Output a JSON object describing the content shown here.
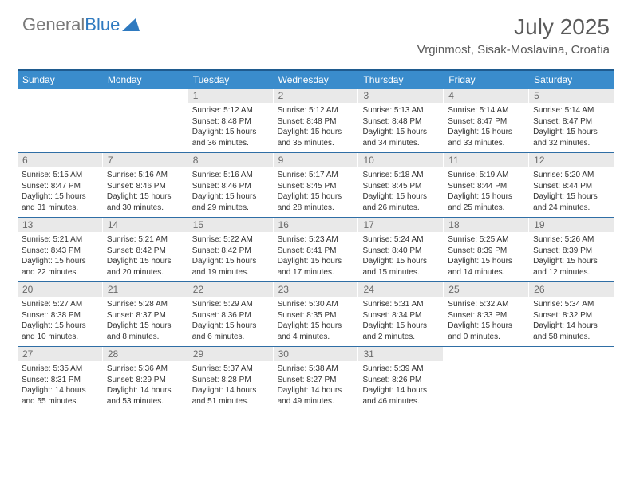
{
  "logo": {
    "word1": "General",
    "word2": "Blue"
  },
  "title": "July 2025",
  "location": "Vrginmost, Sisak-Moslavina, Croatia",
  "colors": {
    "header_bg": "#3a8ccc",
    "header_border": "#1f5b8f",
    "daynum_bg": "#e9e9e9",
    "text": "#333333",
    "logo_gray": "#7a7a7a",
    "logo_blue": "#2f7ac0"
  },
  "days_of_week": [
    "Sunday",
    "Monday",
    "Tuesday",
    "Wednesday",
    "Thursday",
    "Friday",
    "Saturday"
  ],
  "weeks": [
    [
      {
        "num": "",
        "lines": []
      },
      {
        "num": "",
        "lines": []
      },
      {
        "num": "1",
        "lines": [
          "Sunrise: 5:12 AM",
          "Sunset: 8:48 PM",
          "Daylight: 15 hours and 36 minutes."
        ]
      },
      {
        "num": "2",
        "lines": [
          "Sunrise: 5:12 AM",
          "Sunset: 8:48 PM",
          "Daylight: 15 hours and 35 minutes."
        ]
      },
      {
        "num": "3",
        "lines": [
          "Sunrise: 5:13 AM",
          "Sunset: 8:48 PM",
          "Daylight: 15 hours and 34 minutes."
        ]
      },
      {
        "num": "4",
        "lines": [
          "Sunrise: 5:14 AM",
          "Sunset: 8:47 PM",
          "Daylight: 15 hours and 33 minutes."
        ]
      },
      {
        "num": "5",
        "lines": [
          "Sunrise: 5:14 AM",
          "Sunset: 8:47 PM",
          "Daylight: 15 hours and 32 minutes."
        ]
      }
    ],
    [
      {
        "num": "6",
        "lines": [
          "Sunrise: 5:15 AM",
          "Sunset: 8:47 PM",
          "Daylight: 15 hours and 31 minutes."
        ]
      },
      {
        "num": "7",
        "lines": [
          "Sunrise: 5:16 AM",
          "Sunset: 8:46 PM",
          "Daylight: 15 hours and 30 minutes."
        ]
      },
      {
        "num": "8",
        "lines": [
          "Sunrise: 5:16 AM",
          "Sunset: 8:46 PM",
          "Daylight: 15 hours and 29 minutes."
        ]
      },
      {
        "num": "9",
        "lines": [
          "Sunrise: 5:17 AM",
          "Sunset: 8:45 PM",
          "Daylight: 15 hours and 28 minutes."
        ]
      },
      {
        "num": "10",
        "lines": [
          "Sunrise: 5:18 AM",
          "Sunset: 8:45 PM",
          "Daylight: 15 hours and 26 minutes."
        ]
      },
      {
        "num": "11",
        "lines": [
          "Sunrise: 5:19 AM",
          "Sunset: 8:44 PM",
          "Daylight: 15 hours and 25 minutes."
        ]
      },
      {
        "num": "12",
        "lines": [
          "Sunrise: 5:20 AM",
          "Sunset: 8:44 PM",
          "Daylight: 15 hours and 24 minutes."
        ]
      }
    ],
    [
      {
        "num": "13",
        "lines": [
          "Sunrise: 5:21 AM",
          "Sunset: 8:43 PM",
          "Daylight: 15 hours and 22 minutes."
        ]
      },
      {
        "num": "14",
        "lines": [
          "Sunrise: 5:21 AM",
          "Sunset: 8:42 PM",
          "Daylight: 15 hours and 20 minutes."
        ]
      },
      {
        "num": "15",
        "lines": [
          "Sunrise: 5:22 AM",
          "Sunset: 8:42 PM",
          "Daylight: 15 hours and 19 minutes."
        ]
      },
      {
        "num": "16",
        "lines": [
          "Sunrise: 5:23 AM",
          "Sunset: 8:41 PM",
          "Daylight: 15 hours and 17 minutes."
        ]
      },
      {
        "num": "17",
        "lines": [
          "Sunrise: 5:24 AM",
          "Sunset: 8:40 PM",
          "Daylight: 15 hours and 15 minutes."
        ]
      },
      {
        "num": "18",
        "lines": [
          "Sunrise: 5:25 AM",
          "Sunset: 8:39 PM",
          "Daylight: 15 hours and 14 minutes."
        ]
      },
      {
        "num": "19",
        "lines": [
          "Sunrise: 5:26 AM",
          "Sunset: 8:39 PM",
          "Daylight: 15 hours and 12 minutes."
        ]
      }
    ],
    [
      {
        "num": "20",
        "lines": [
          "Sunrise: 5:27 AM",
          "Sunset: 8:38 PM",
          "Daylight: 15 hours and 10 minutes."
        ]
      },
      {
        "num": "21",
        "lines": [
          "Sunrise: 5:28 AM",
          "Sunset: 8:37 PM",
          "Daylight: 15 hours and 8 minutes."
        ]
      },
      {
        "num": "22",
        "lines": [
          "Sunrise: 5:29 AM",
          "Sunset: 8:36 PM",
          "Daylight: 15 hours and 6 minutes."
        ]
      },
      {
        "num": "23",
        "lines": [
          "Sunrise: 5:30 AM",
          "Sunset: 8:35 PM",
          "Daylight: 15 hours and 4 minutes."
        ]
      },
      {
        "num": "24",
        "lines": [
          "Sunrise: 5:31 AM",
          "Sunset: 8:34 PM",
          "Daylight: 15 hours and 2 minutes."
        ]
      },
      {
        "num": "25",
        "lines": [
          "Sunrise: 5:32 AM",
          "Sunset: 8:33 PM",
          "Daylight: 15 hours and 0 minutes."
        ]
      },
      {
        "num": "26",
        "lines": [
          "Sunrise: 5:34 AM",
          "Sunset: 8:32 PM",
          "Daylight: 14 hours and 58 minutes."
        ]
      }
    ],
    [
      {
        "num": "27",
        "lines": [
          "Sunrise: 5:35 AM",
          "Sunset: 8:31 PM",
          "Daylight: 14 hours and 55 minutes."
        ]
      },
      {
        "num": "28",
        "lines": [
          "Sunrise: 5:36 AM",
          "Sunset: 8:29 PM",
          "Daylight: 14 hours and 53 minutes."
        ]
      },
      {
        "num": "29",
        "lines": [
          "Sunrise: 5:37 AM",
          "Sunset: 8:28 PM",
          "Daylight: 14 hours and 51 minutes."
        ]
      },
      {
        "num": "30",
        "lines": [
          "Sunrise: 5:38 AM",
          "Sunset: 8:27 PM",
          "Daylight: 14 hours and 49 minutes."
        ]
      },
      {
        "num": "31",
        "lines": [
          "Sunrise: 5:39 AM",
          "Sunset: 8:26 PM",
          "Daylight: 14 hours and 46 minutes."
        ]
      },
      {
        "num": "",
        "lines": []
      },
      {
        "num": "",
        "lines": []
      }
    ]
  ]
}
